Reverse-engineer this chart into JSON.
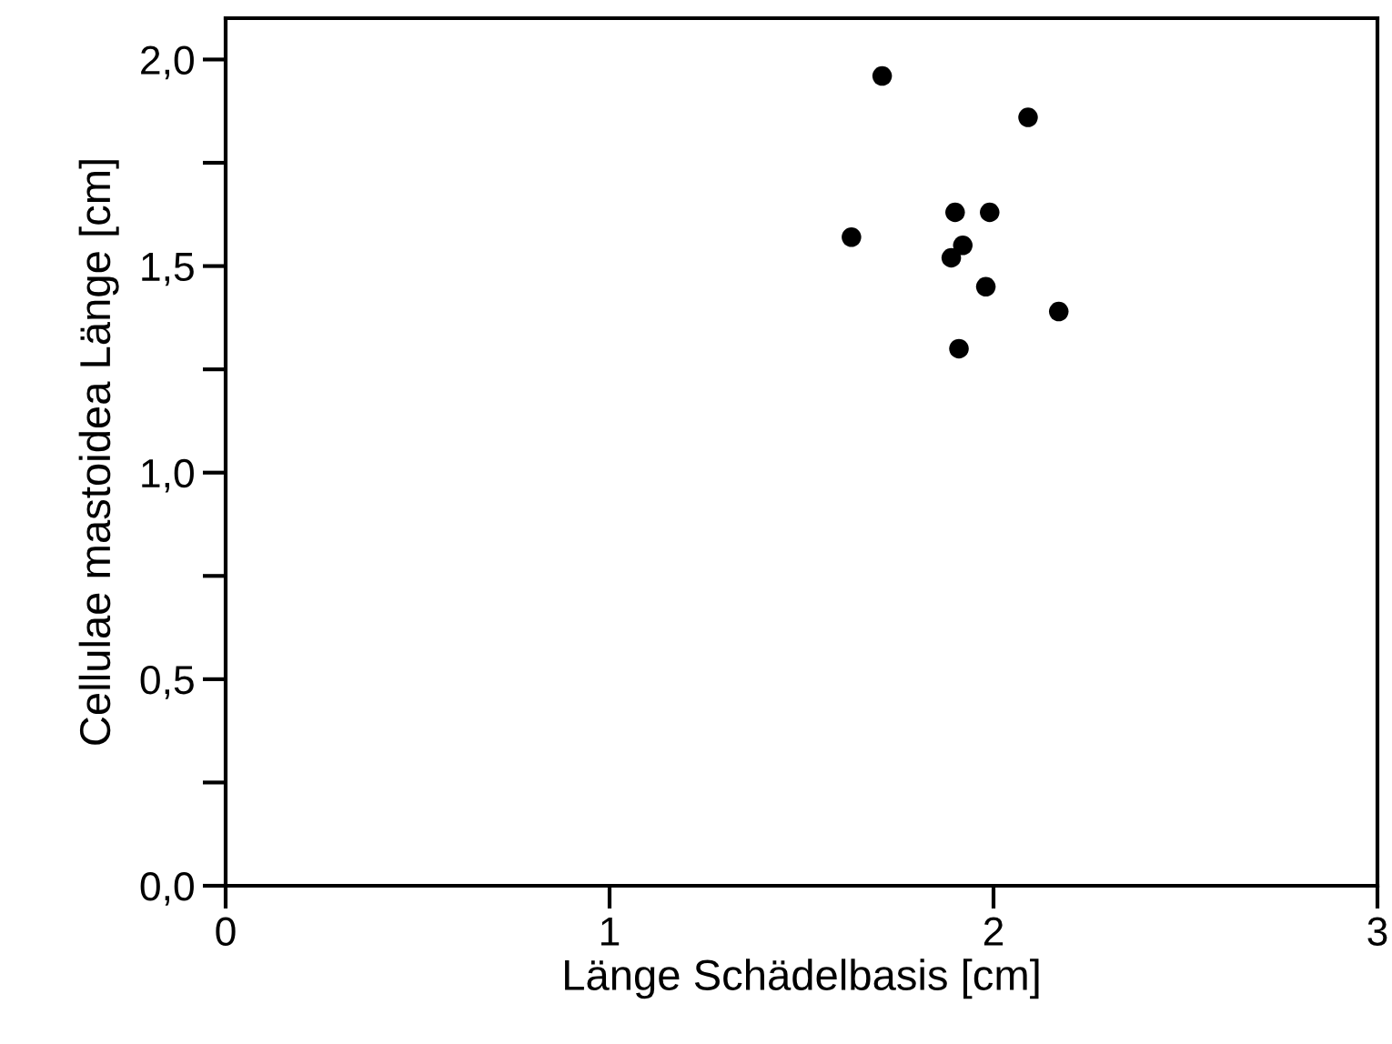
{
  "chart_data": {
    "type": "scatter",
    "xlabel": "Länge Schädelbasis [cm]",
    "ylabel": "Cellulae mastoidea Länge [cm]",
    "x": [
      1.71,
      2.09,
      1.9,
      1.99,
      1.63,
      1.92,
      1.89,
      1.98,
      2.17,
      1.91
    ],
    "values": [
      1.96,
      1.86,
      1.63,
      1.63,
      1.57,
      1.55,
      1.52,
      1.45,
      1.39,
      1.3
    ],
    "color": "#000000",
    "marker": "circle",
    "grid": false,
    "legend": false,
    "xlim": [
      0,
      3
    ],
    "xticks": [
      0,
      1,
      2,
      3
    ],
    "ylim": [
      0,
      2.1
    ],
    "yticks": [
      {
        "value": 0,
        "label": "0,0"
      },
      {
        "value": 0.25,
        "label": null
      },
      {
        "value": 0.5,
        "label": "0,5"
      },
      {
        "value": 0.75,
        "label": null
      },
      {
        "value": 1.0,
        "label": "1,0"
      },
      {
        "value": 1.25,
        "label": null
      },
      {
        "value": 1.5,
        "label": "1,5"
      },
      {
        "value": 1.75,
        "label": null
      },
      {
        "value": 2.0,
        "label": "2,0"
      }
    ]
  }
}
